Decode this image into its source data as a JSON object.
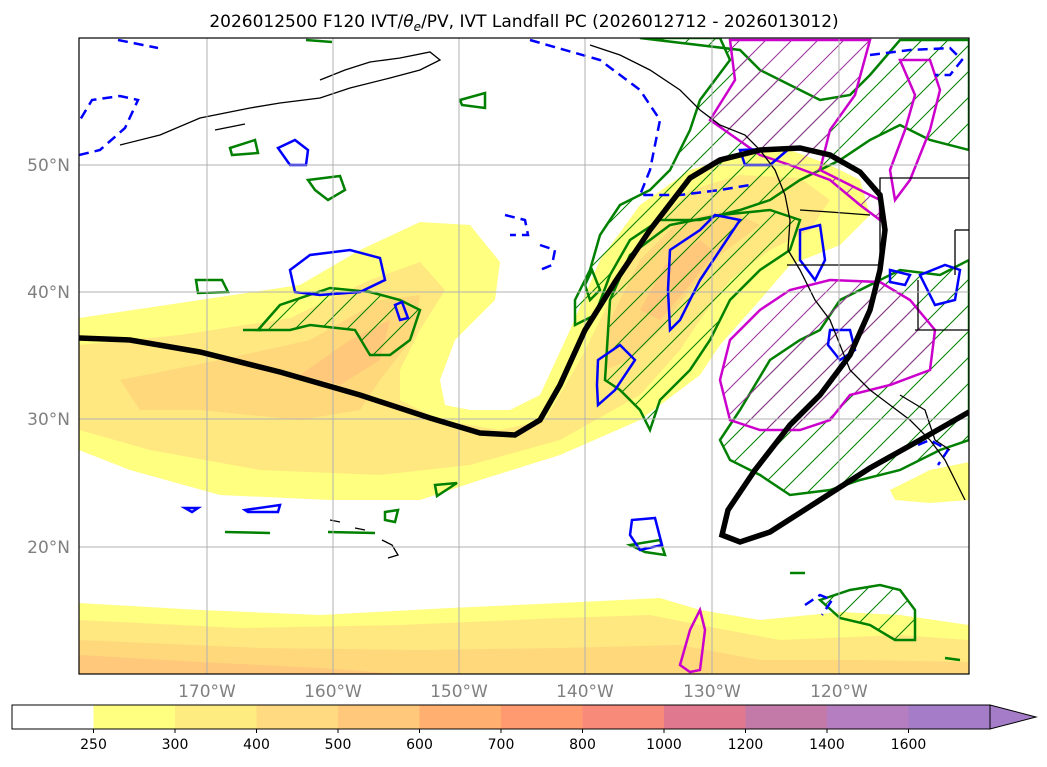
{
  "title_prefix": "2026012500 F120 IVT/",
  "title_theta": "θ",
  "title_sub": "e",
  "title_suffix": "/PV, IVT Landfall PC (2026012712 - 2026013012)",
  "lat_labels": [
    "50°N",
    "40°N",
    "30°N",
    "20°N"
  ],
  "lon_labels": [
    "170°W",
    "160°W",
    "150°W",
    "140°W",
    "130°W",
    "120°W"
  ],
  "colorbar": {
    "ticks": [
      "250",
      "300",
      "400",
      "500",
      "600",
      "700",
      "800",
      "1000",
      "1200",
      "1400",
      "1600"
    ],
    "colors": [
      "#ffffff",
      "#ffff80",
      "#ffec80",
      "#ffda80",
      "#ffc87a",
      "#ffb070",
      "#ff9a70",
      "#f78a78",
      "#e07890",
      "#c47aa8",
      "#b47ec0",
      "#a47cc8"
    ]
  },
  "legend_colors": {
    "ivt_shading_base": "#ffff80",
    "pc_line": "#000000",
    "theta_e": "#008000",
    "pv_positive": "#0000ff",
    "pv_negative_dashed": "#0000ff",
    "magenta_contour": "#cc00cc",
    "coastline": "#000000"
  },
  "map_extent": {
    "lon": [
      -180,
      -110
    ],
    "lat": [
      10,
      60
    ]
  }
}
